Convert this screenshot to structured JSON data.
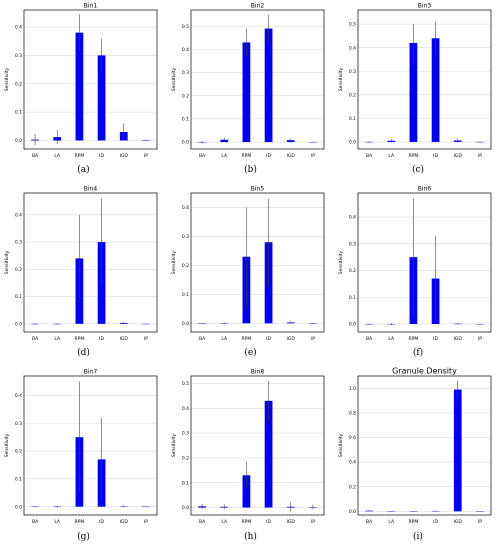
{
  "chart_data": [
    {
      "type": "bar",
      "title": "Bin1",
      "caption": "(a)",
      "ylabel": "Sensitivity",
      "categories": [
        "BA",
        "LA",
        "RPM",
        "ID",
        "IGD",
        "IP"
      ],
      "values": [
        0.003,
        0.012,
        0.38,
        0.3,
        0.03,
        0.001
      ],
      "errors": [
        0.02,
        0.025,
        0.065,
        0.06,
        0.03,
        0.003
      ],
      "ylim": [
        -0.03,
        0.46
      ],
      "yticks": [
        0.0,
        0.1,
        0.2,
        0.3,
        0.4
      ],
      "yticklabels": [
        "0.0",
        "0.1",
        "0.2",
        "0.3",
        "0.4"
      ]
    },
    {
      "type": "bar",
      "title": "Bin2",
      "caption": "(b)",
      "ylabel": "Sensitivity",
      "categories": [
        "BA",
        "LA",
        "RPM",
        "ID",
        "IGD",
        "IP"
      ],
      "values": [
        0.0,
        0.01,
        0.43,
        0.49,
        0.008,
        0.0
      ],
      "errors": [
        0.005,
        0.01,
        0.06,
        0.06,
        0.008,
        0.002
      ],
      "ylim": [
        -0.03,
        0.57
      ],
      "yticks": [
        0.0,
        0.1,
        0.2,
        0.3,
        0.4,
        0.5
      ],
      "yticklabels": [
        "0.0",
        "0.1",
        "0.2",
        "0.3",
        "0.4",
        "0.5"
      ]
    },
    {
      "type": "bar",
      "title": "Bin3",
      "caption": "(c)",
      "ylabel": "Sensitivity",
      "categories": [
        "BA",
        "LA",
        "RPM",
        "ID",
        "IGD",
        "IP"
      ],
      "values": [
        0.0,
        0.005,
        0.42,
        0.44,
        0.006,
        0.0
      ],
      "errors": [
        0.003,
        0.008,
        0.08,
        0.07,
        0.008,
        0.002
      ],
      "ylim": [
        -0.03,
        0.56
      ],
      "yticks": [
        0.0,
        0.1,
        0.2,
        0.3,
        0.4,
        0.5
      ],
      "yticklabels": [
        "0.0",
        "0.1",
        "0.2",
        "0.3",
        "0.4",
        "0.5"
      ]
    },
    {
      "type": "bar",
      "title": "Bin4",
      "caption": "(d)",
      "ylabel": "Sensitivity",
      "categories": [
        "BA",
        "LA",
        "RPM",
        "ID",
        "IGD",
        "IP"
      ],
      "values": [
        0.0,
        0.0,
        0.24,
        0.3,
        0.003,
        0.0
      ],
      "errors": [
        0.003,
        0.003,
        0.16,
        0.16,
        0.004,
        0.001
      ],
      "ylim": [
        -0.03,
        0.48
      ],
      "yticks": [
        0.0,
        0.1,
        0.2,
        0.3,
        0.4
      ],
      "yticklabels": [
        "0.0",
        "0.1",
        "0.2",
        "0.3",
        "0.4"
      ]
    },
    {
      "type": "bar",
      "title": "Bin5",
      "caption": "(e)",
      "ylabel": "Sensitivity",
      "categories": [
        "BA",
        "LA",
        "RPM",
        "ID",
        "IGD",
        "IP"
      ],
      "values": [
        0.0,
        0.0,
        0.23,
        0.28,
        0.003,
        0.0
      ],
      "errors": [
        0.003,
        0.003,
        0.17,
        0.15,
        0.004,
        0.001
      ],
      "ylim": [
        -0.03,
        0.45
      ],
      "yticks": [
        0.0,
        0.1,
        0.2,
        0.3,
        0.4
      ],
      "yticklabels": [
        "0.0",
        "0.1",
        "0.2",
        "0.3",
        "0.4"
      ]
    },
    {
      "type": "bar",
      "title": "Bin6",
      "caption": "(f)",
      "ylabel": "Sensitivity",
      "categories": [
        "BA",
        "LA",
        "RPM",
        "ID",
        "IGD",
        "IP"
      ],
      "values": [
        0.0,
        0.0,
        0.25,
        0.17,
        0.001,
        0.0
      ],
      "errors": [
        0.002,
        0.004,
        0.22,
        0.16,
        0.003,
        0.001
      ],
      "ylim": [
        -0.03,
        0.49
      ],
      "yticks": [
        0.0,
        0.1,
        0.2,
        0.3,
        0.4
      ],
      "yticklabels": [
        "0.0",
        "0.1",
        "0.2",
        "0.3",
        "0.4"
      ]
    },
    {
      "type": "bar",
      "title": "Bin7",
      "caption": "(g)",
      "ylabel": "Sensitivity",
      "categories": [
        "BA",
        "LA",
        "RPM",
        "ID",
        "IGD",
        "IP"
      ],
      "values": [
        0.0,
        0.0,
        0.25,
        0.17,
        0.001,
        0.0
      ],
      "errors": [
        0.002,
        0.003,
        0.2,
        0.15,
        0.003,
        0.001
      ],
      "ylim": [
        -0.03,
        0.47
      ],
      "yticks": [
        0.0,
        0.1,
        0.2,
        0.3,
        0.4
      ],
      "yticklabels": [
        "0.0",
        "0.1",
        "0.2",
        "0.3",
        "0.4"
      ]
    },
    {
      "type": "bar",
      "title": "Bin8",
      "caption": "(h)",
      "ylabel": "Sensitivity",
      "categories": [
        "BA",
        "LA",
        "RPM",
        "ID",
        "IGD",
        "IP"
      ],
      "values": [
        0.005,
        0.003,
        0.13,
        0.43,
        0.003,
        0.002
      ],
      "errors": [
        0.01,
        0.01,
        0.055,
        0.08,
        0.02,
        0.01
      ],
      "ylim": [
        -0.03,
        0.53
      ],
      "yticks": [
        0.0,
        0.1,
        0.2,
        0.3,
        0.4,
        0.5
      ],
      "yticklabels": [
        "0.0",
        "0.1",
        "0.2",
        "0.3",
        "0.4",
        "0.5"
      ]
    },
    {
      "type": "bar",
      "title": "Granule Density",
      "caption": "(i)",
      "ylabel": "Sensitivity",
      "categories": [
        "BA",
        "LA",
        "RPM",
        "ID",
        "IGD",
        "IP"
      ],
      "values": [
        0.005,
        0.001,
        0.001,
        0.003,
        0.99,
        0.001
      ],
      "errors": [
        0.004,
        0.002,
        0.002,
        0.003,
        0.07,
        0.002
      ],
      "ylim": [
        -0.03,
        1.1
      ],
      "yticks": [
        0.0,
        0.2,
        0.4,
        0.6,
        0.8,
        1.0
      ],
      "yticklabels": [
        "0.0",
        "0.2",
        "0.4",
        "0.6",
        "0.8",
        "1.0"
      ],
      "big_title": true
    }
  ],
  "style": {
    "bar_color": "#0000ee",
    "err_color": "#444444",
    "grid_color": "#d9d9d9",
    "axis_color": "#000000"
  }
}
